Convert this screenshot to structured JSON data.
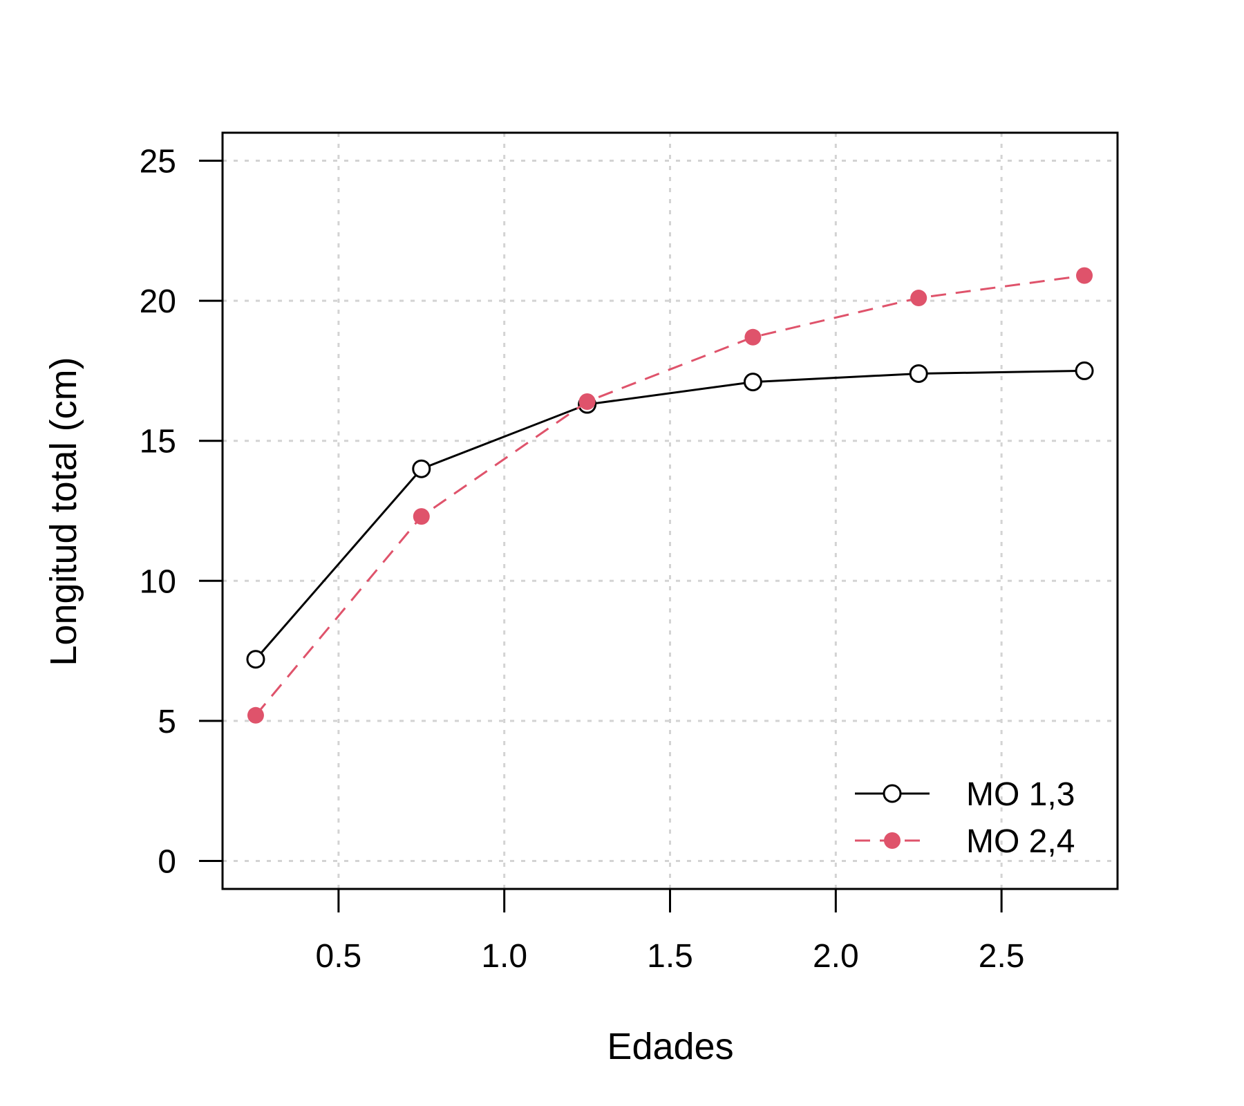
{
  "chart_data": {
    "type": "line",
    "title": "",
    "xlabel": "Edades",
    "ylabel": "Longitud total (cm)",
    "xlim": [
      0.15,
      2.85
    ],
    "ylim": [
      -1,
      26
    ],
    "x_ticks": [
      "0.5",
      "1.0",
      "1.5",
      "2.0",
      "2.5"
    ],
    "y_ticks": [
      "0",
      "5",
      "10",
      "15",
      "20",
      "25"
    ],
    "grid": true,
    "legend_position": "bottom-right",
    "x": [
      0.25,
      0.75,
      1.25,
      1.75,
      2.25,
      2.75
    ],
    "series": [
      {
        "name": "MO 1,3",
        "color": "#000000",
        "line_style": "solid",
        "marker": "open-circle",
        "values": [
          7.2,
          14.0,
          16.3,
          17.1,
          17.4,
          17.5
        ]
      },
      {
        "name": "MO 2,4",
        "color": "#df536b",
        "line_style": "dashed",
        "marker": "filled-circle",
        "values": [
          5.2,
          12.3,
          16.4,
          18.7,
          20.1,
          20.9
        ]
      }
    ]
  }
}
